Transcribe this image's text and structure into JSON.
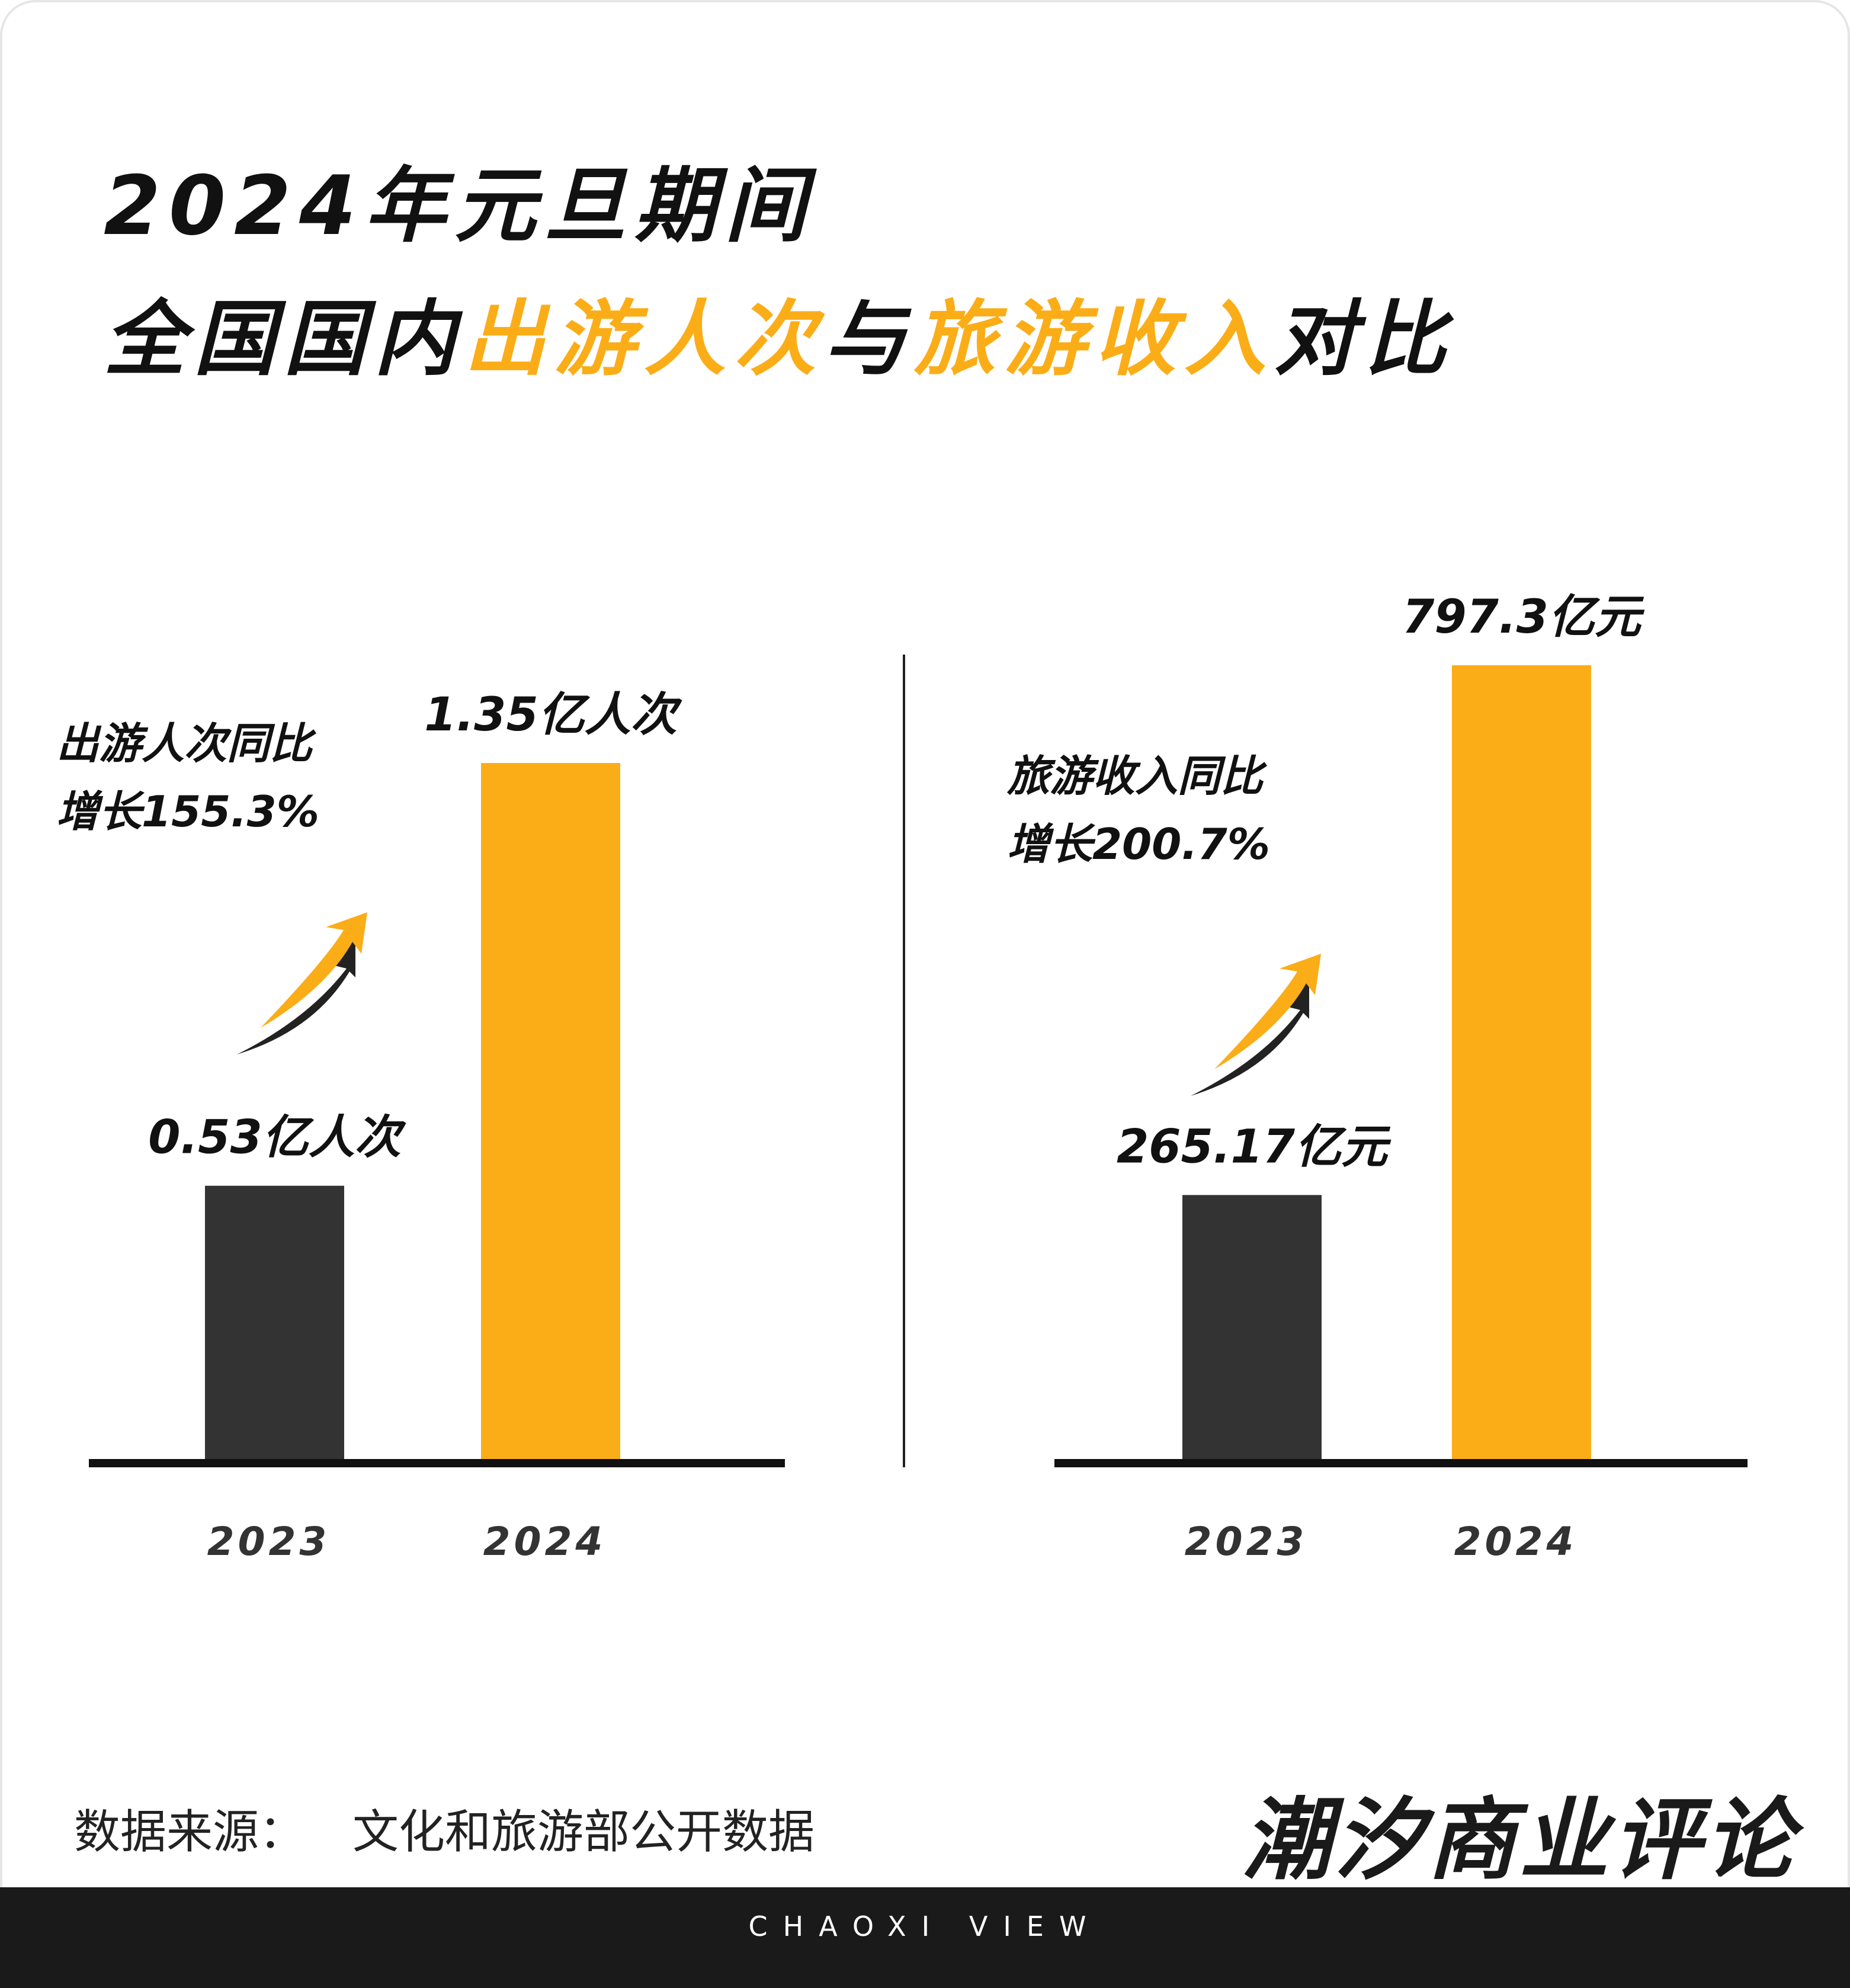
{
  "title": {
    "line1": "2024年元旦期间",
    "line2_pre": "全国国内",
    "line2_hl1": "出游人次",
    "line2_mid": "与",
    "line2_hl2": "旅游收入",
    "line2_post": "对比"
  },
  "colors": {
    "accent": "#fbad18",
    "dark": "#333333"
  },
  "chart_data": [
    {
      "type": "bar",
      "categories": [
        "2023",
        "2024"
      ],
      "values": [
        0.53,
        1.35
      ],
      "value_labels": [
        "0.53亿人次",
        "1.35亿人次"
      ],
      "annotation_line1": "出游人次同比",
      "annotation_line2": "增长155.3%"
    },
    {
      "type": "bar",
      "categories": [
        "2023",
        "2024"
      ],
      "values": [
        265.17,
        797.3
      ],
      "value_labels": [
        "265.17亿元",
        "797.3亿元"
      ],
      "annotation_line1": "旅游收入同比",
      "annotation_line2": "增长200.7%"
    }
  ],
  "source": {
    "label": "数据来源：",
    "value": "文化和旅游部公开数据"
  },
  "brand": "潮汐商业评论",
  "footer": "CHAOXI VIEW"
}
